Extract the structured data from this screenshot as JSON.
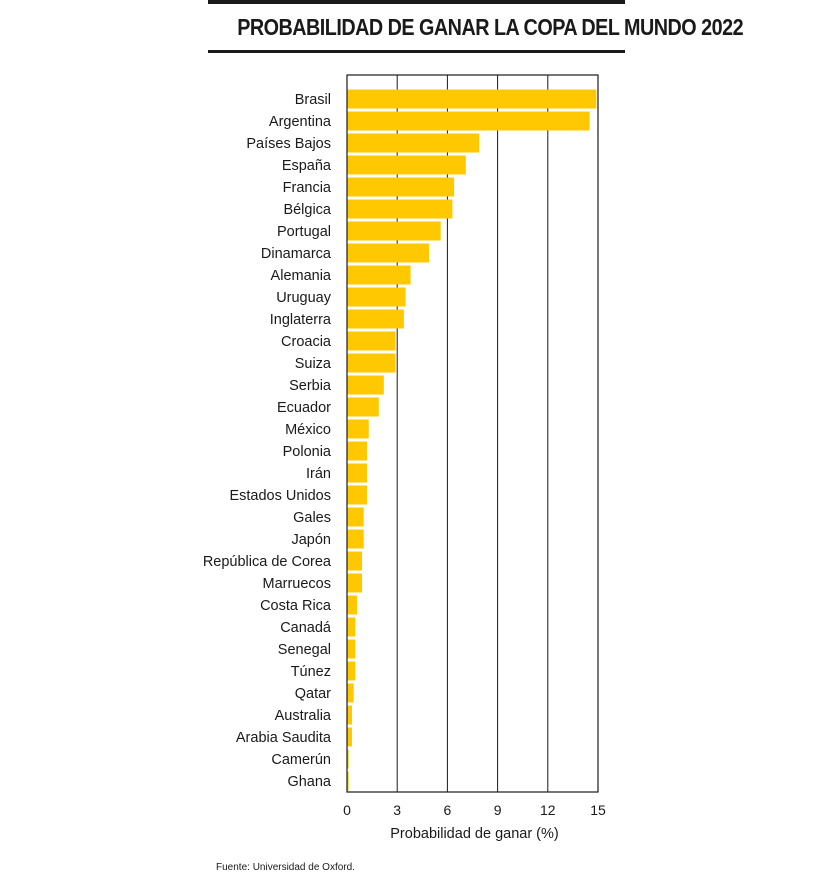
{
  "title": "PROBABILIDAD DE GANAR LA COPA DEL MUNDO 2022",
  "source": "Fuente: Universidad de Oxford.",
  "chart_data": {
    "type": "bar",
    "orientation": "horizontal",
    "xlabel": "Probabilidad de ganar (%)",
    "xlim": [
      0,
      15
    ],
    "xticks": [
      0,
      3,
      6,
      9,
      12,
      15
    ],
    "grid": true,
    "bar_color": "#FFC800",
    "categories": [
      "Brasil",
      "Argentina",
      "Países Bajos",
      "España",
      "Francia",
      "Bélgica",
      "Portugal",
      "Dinamarca",
      "Alemania",
      "Uruguay",
      "Inglaterra",
      "Croacia",
      "Suiza",
      "Serbia",
      "Ecuador",
      "México",
      "Polonia",
      "Irán",
      "Estados Unidos",
      "Gales",
      "Japón",
      "República de Corea",
      "Marruecos",
      "Costa Rica",
      "Canadá",
      "Senegal",
      "Túnez",
      "Qatar",
      "Australia",
      "Arabia Saudita",
      "Camerún",
      "Ghana"
    ],
    "values": [
      14.9,
      14.5,
      7.9,
      7.1,
      6.4,
      6.3,
      5.6,
      4.9,
      3.8,
      3.5,
      3.4,
      2.9,
      2.9,
      2.2,
      1.9,
      1.3,
      1.2,
      1.2,
      1.2,
      1.0,
      1.0,
      0.9,
      0.9,
      0.6,
      0.5,
      0.5,
      0.5,
      0.4,
      0.3,
      0.3,
      0.1,
      0.1
    ]
  }
}
